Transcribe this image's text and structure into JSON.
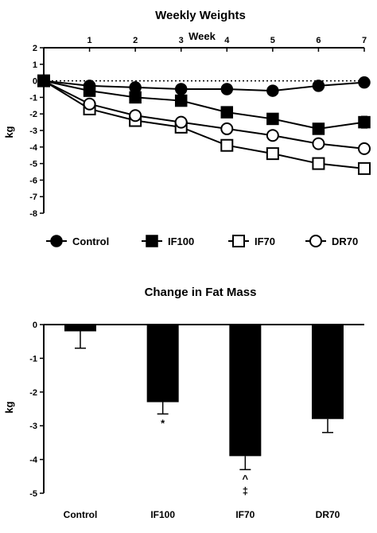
{
  "chart_data": [
    {
      "type": "line",
      "title": "Weekly Weights",
      "xlabel": "Week",
      "ylabel": "kg",
      "x": [
        0,
        1,
        2,
        3,
        4,
        5,
        6,
        7
      ],
      "x_ticks": [
        "1",
        "2",
        "3",
        "4",
        "5",
        "6",
        "7"
      ],
      "y_ticks": [
        "2",
        "1",
        "0",
        "-1",
        "-2",
        "-3",
        "-4",
        "-5",
        "-6",
        "-7",
        "-8"
      ],
      "ylim": [
        -8,
        2
      ],
      "xlim": [
        0,
        7
      ],
      "zero_reference_line": "dotted",
      "x_axis_position": "top",
      "legend_position": "bottom",
      "series": [
        {
          "name": "Control",
          "marker": "filled-circle",
          "values": [
            0,
            -0.3,
            -0.4,
            -0.5,
            -0.5,
            -0.6,
            -0.3,
            -0.1
          ],
          "errors": [
            0,
            0.2,
            0.2,
            0.2,
            0.2,
            0.25,
            0.2,
            0.25
          ]
        },
        {
          "name": "IF100",
          "marker": "filled-square",
          "values": [
            0,
            -0.6,
            -1.0,
            -1.2,
            -1.9,
            -2.3,
            -2.9,
            -2.5
          ],
          "errors": [
            0,
            0.2,
            0.2,
            0.2,
            0.25,
            0.25,
            0.3,
            0.35
          ]
        },
        {
          "name": "IF70",
          "marker": "open-square",
          "values": [
            0,
            -1.7,
            -2.4,
            -2.8,
            -3.9,
            -4.4,
            -5.0,
            -5.3
          ],
          "errors": [
            0,
            0.2,
            0.2,
            0.25,
            0.25,
            0.25,
            0.25,
            0.3
          ]
        },
        {
          "name": "DR70",
          "marker": "open-circle",
          "values": [
            0,
            -1.4,
            -2.1,
            -2.5,
            -2.9,
            -3.3,
            -3.8,
            -4.1
          ],
          "errors": [
            0,
            0.2,
            0.2,
            0.2,
            0.25,
            0.25,
            0.3,
            0.3
          ]
        }
      ]
    },
    {
      "type": "bar",
      "title": "Change in Fat Mass",
      "xlabel": "",
      "ylabel": "kg",
      "categories": [
        "Control",
        "IF100",
        "IF70",
        "DR70"
      ],
      "values": [
        -0.2,
        -2.3,
        -3.9,
        -2.8
      ],
      "errors": [
        0.5,
        0.35,
        0.4,
        0.4
      ],
      "annotations": [
        "",
        "*",
        "^\n‡",
        ""
      ],
      "ylim": [
        -5,
        0
      ],
      "y_ticks": [
        "0",
        "-1",
        "-2",
        "-3",
        "-4",
        "-5"
      ],
      "bar_color": "#000000"
    }
  ]
}
